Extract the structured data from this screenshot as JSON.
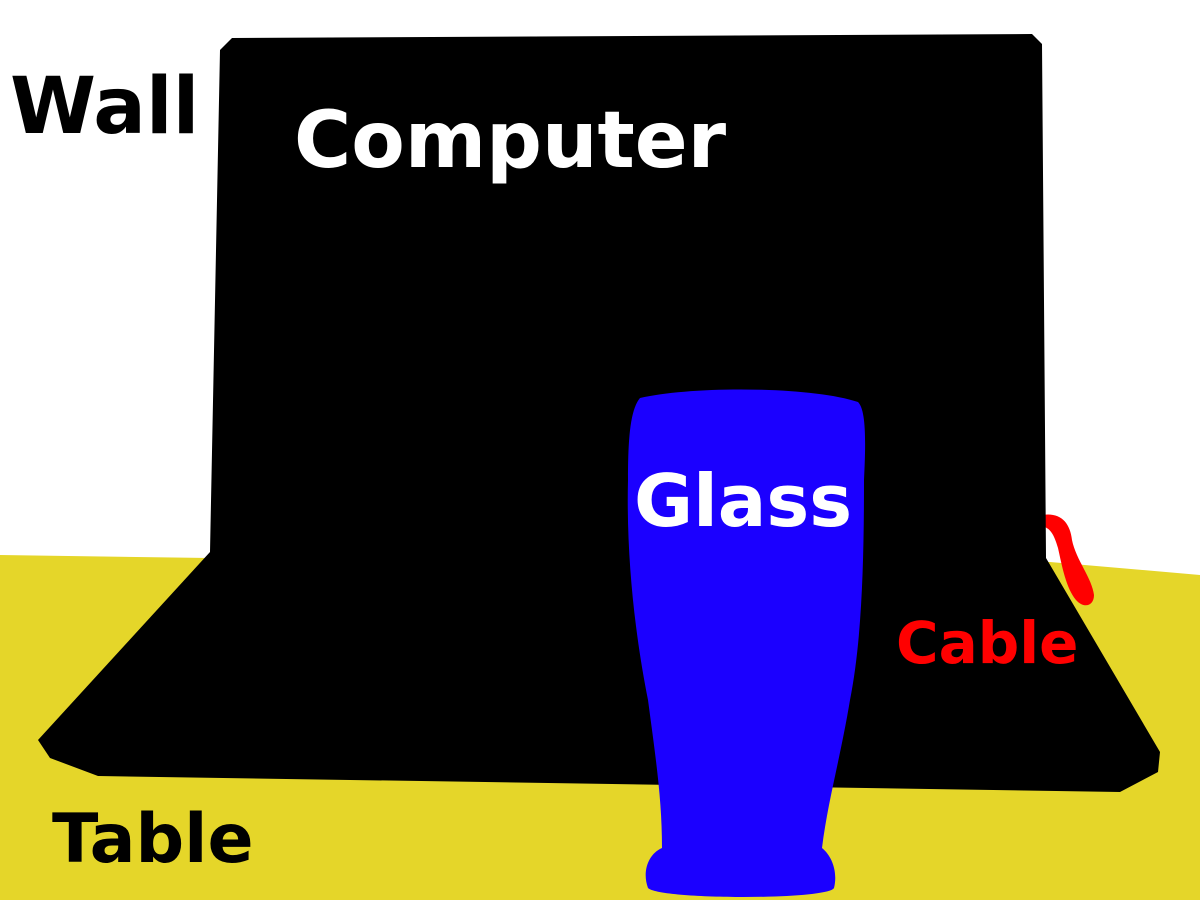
{
  "labels": {
    "wall": "Wall",
    "computer": "Computer",
    "glass": "Glass",
    "cable": "Cable",
    "table": "Table"
  },
  "colors": {
    "wall": "#ffffff",
    "table": "#e5d629",
    "computer": "#000000",
    "glass": "#1b00ff",
    "cable": "#ff0000",
    "label_dark": "#000000",
    "label_light": "#ffffff",
    "label_cable": "#ff0000"
  }
}
